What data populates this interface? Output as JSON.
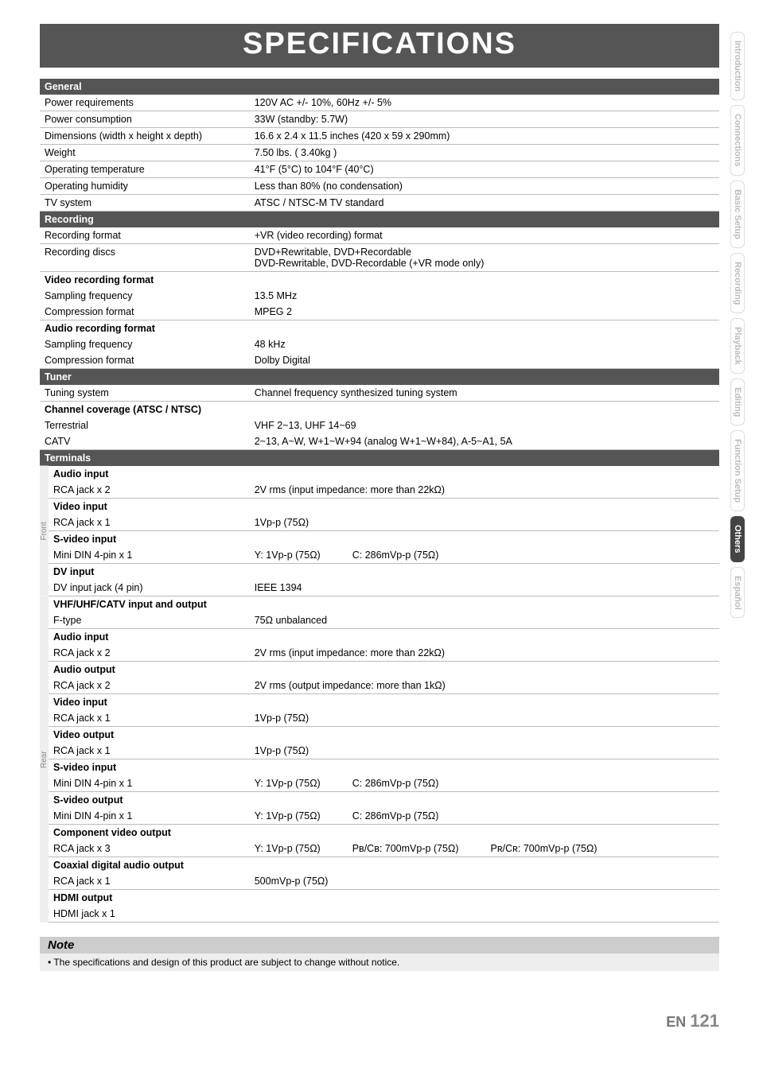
{
  "title": "SPECIFICATIONS",
  "sections": {
    "general": {
      "header": "General",
      "rows": [
        {
          "label": "Power requirements",
          "value": "120V AC +/- 10%, 60Hz +/- 5%"
        },
        {
          "label": "Power consumption",
          "value": "33W (standby: 5.7W)"
        },
        {
          "label": "Dimensions (width x height x depth)",
          "value": "16.6 x 2.4 x 11.5 inches (420 x 59 x 290mm)"
        },
        {
          "label": "Weight",
          "value": "7.50 lbs. ( 3.40kg )"
        },
        {
          "label": "Operating temperature",
          "value": "41°F (5°C) to 104°F (40°C)"
        },
        {
          "label": "Operating humidity",
          "value": "Less than 80% (no condensation)"
        },
        {
          "label": "TV system",
          "value": "ATSC / NTSC-M TV standard"
        }
      ]
    },
    "recording": {
      "header": "Recording",
      "rows": [
        {
          "label": "Recording format",
          "value": "+VR (video recording) format"
        },
        {
          "label": "Recording discs",
          "value": "DVD+Rewritable, DVD+Recordable\nDVD-Rewritable, DVD-Recordable (+VR mode only)"
        }
      ],
      "video_rec": {
        "header": "Video recording format",
        "sampling_label": "Sampling frequency",
        "sampling_value": "13.5 MHz",
        "comp_label": "Compression format",
        "comp_value": "MPEG 2"
      },
      "audio_rec": {
        "header": "Audio recording format",
        "sampling_label": "Sampling frequency",
        "sampling_value": "48 kHz",
        "comp_label": "Compression format",
        "comp_value": "Dolby Digital"
      }
    },
    "tuner": {
      "header": "Tuner",
      "tuning_label": "Tuning system",
      "tuning_value": "Channel frequency synthesized tuning system",
      "coverage_header": "Channel coverage (ATSC / NTSC)",
      "terr_label": "Terrestrial",
      "terr_value": "VHF 2~13, UHF 14~69",
      "catv_label": "CATV",
      "catv_value": "2~13, A~W, W+1~W+94 (analog W+1~W+84), A-5~A1, 5A"
    },
    "terminals": {
      "header": "Terminals",
      "front_label": "Front",
      "rear_label": "Rear",
      "front": {
        "audio_in_h": "Audio input",
        "audio_in_l": "RCA jack x 2",
        "audio_in_v": "2V rms (input impedance: more than 22kΩ)",
        "video_in_h": "Video input",
        "video_in_l": "RCA jack x 1",
        "video_in_v": "1Vp-p (75Ω)",
        "svideo_in_h": "S-video input",
        "svideo_in_l": "Mini DIN  4-pin x 1",
        "svideo_in_y": "Y: 1Vp-p (75Ω)",
        "svideo_in_c": "C: 286mVp-p (75Ω)",
        "dv_in_h": "DV input",
        "dv_in_l": "DV input jack (4 pin)",
        "dv_in_v": "IEEE 1394"
      },
      "rear": {
        "vhf_h": "VHF/UHF/CATV input and output",
        "vhf_l": "F-type",
        "vhf_v": "75Ω unbalanced",
        "audio_in_h": "Audio input",
        "audio_in_l": "RCA jack x 2",
        "audio_in_v": "2V rms (input impedance: more than 22kΩ)",
        "audio_out_h": "Audio output",
        "audio_out_l": "RCA jack x 2",
        "audio_out_v": "2V rms (output impedance: more than 1kΩ)",
        "video_in_h": "Video input",
        "video_in_l": "RCA jack x 1",
        "video_in_v": "1Vp-p (75Ω)",
        "video_out_h": "Video output",
        "video_out_l": "RCA jack x 1",
        "video_out_v": "1Vp-p (75Ω)",
        "svideo_in_h": "S-video input",
        "svideo_in_l": "Mini DIN 4-pin x 1",
        "svideo_in_y": "Y: 1Vp-p (75Ω)",
        "svideo_in_c": "C: 286mVp-p (75Ω)",
        "svideo_out_h": "S-video output",
        "svideo_out_l": "Mini DIN 4-pin x 1",
        "svideo_out_y": "Y: 1Vp-p (75Ω)",
        "svideo_out_c": "C: 286mVp-p (75Ω)",
        "comp_h": "Component video output",
        "comp_l": "RCA jack x 3",
        "comp_y": "Y: 1Vp-p (75Ω)",
        "comp_pb": "Pʙ/Cʙ: 700mVp-p (75Ω)",
        "comp_pr": "Pʀ/Cʀ: 700mVp-p (75Ω)",
        "coax_h": "Coaxial digital audio output",
        "coax_l": "RCA jack x 1",
        "coax_v": "500mVp-p (75Ω)",
        "hdmi_h": "HDMI output",
        "hdmi_l": "HDMI jack x 1"
      }
    }
  },
  "note": {
    "header": "Note",
    "body": "• The specifications and design of this product are subject to change without notice."
  },
  "tabs": [
    "Introduction",
    "Connections",
    "Basic Setup",
    "Recording",
    "Playback",
    "Editing",
    "Function Setup",
    "Others",
    "Español"
  ],
  "active_tab": "Others",
  "footer": {
    "en": "EN",
    "page": "121"
  }
}
